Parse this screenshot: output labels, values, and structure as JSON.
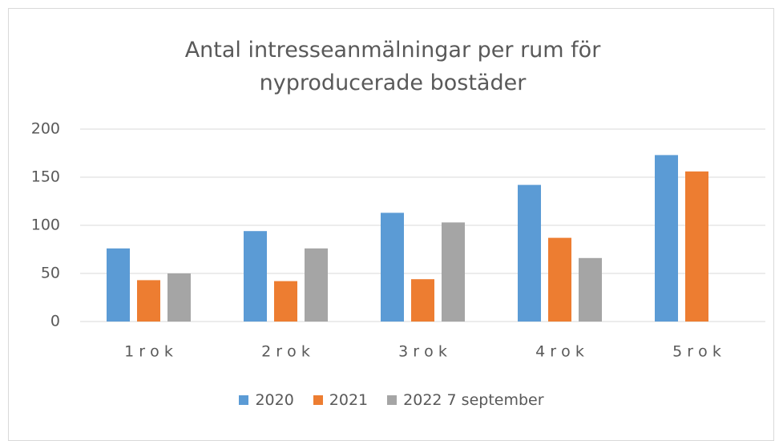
{
  "chart_data": {
    "type": "bar",
    "title": "Antal intresseanmälningar per rum för nyproducerade bostäder",
    "categories": [
      "1 r o k",
      "2 r o k",
      "3 r o k",
      "4 r o k",
      "5 r o k"
    ],
    "series": [
      {
        "name": "2020",
        "color": "#5b9bd5",
        "values": [
          76,
          94,
          113,
          142,
          173
        ]
      },
      {
        "name": "2021",
        "color": "#ed7d31",
        "values": [
          43,
          42,
          44,
          87,
          156
        ]
      },
      {
        "name": "2022 7 september",
        "color": "#a5a5a5",
        "values": [
          50,
          76,
          103,
          66,
          null
        ]
      }
    ],
    "ylim": [
      0,
      200
    ],
    "yticks": [
      0,
      50,
      100,
      150,
      200
    ],
    "grid": true,
    "legend": "bottom"
  }
}
